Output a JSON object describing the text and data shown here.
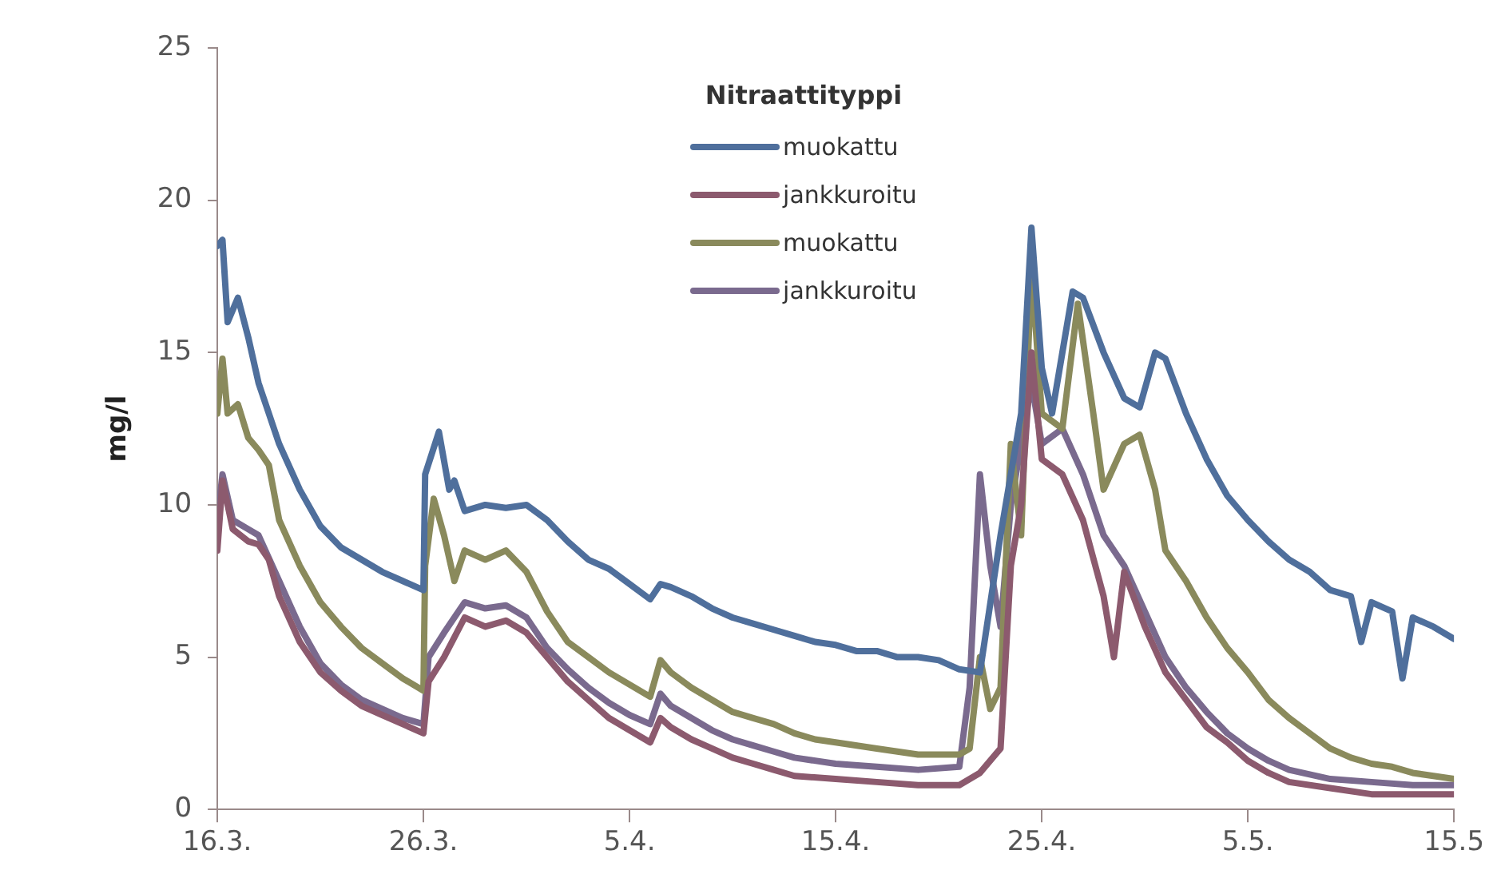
{
  "chart_data": {
    "type": "line",
    "ylabel": "mg/l",
    "legend_title": "Nitraattityppi",
    "legend": "top",
    "grid": false,
    "marker": "none",
    "line_style": "solid",
    "xlim": [
      "--03-16",
      "--05-15"
    ],
    "xticks": [
      {
        "value": "--03-16",
        "label": "16.3."
      },
      {
        "value": "--03-26",
        "label": "26.3."
      },
      {
        "value": "--04-05",
        "label": "5.4."
      },
      {
        "value": "--04-15",
        "label": "15.4."
      },
      {
        "value": "--04-25",
        "label": "25.4."
      },
      {
        "value": "--05-05",
        "label": "5.5."
      },
      {
        "value": "--05-15",
        "label": "15.5"
      }
    ],
    "ylim": [
      0,
      25
    ],
    "yticks": [
      0,
      5,
      10,
      15,
      20,
      25
    ],
    "series": [
      {
        "name": "muokattu",
        "color": "#4f6f9c",
        "x": [
          "--03-16",
          "--03-16T06:00",
          "--03-16T12:00",
          "--03-17",
          "--03-17T12:00",
          "--03-18",
          "--03-19",
          "--03-20",
          "--03-21",
          "--03-22",
          "--03-23",
          "--03-24",
          "--03-25",
          "--03-26",
          "--03-26T02:00",
          "--03-26T18:00",
          "--03-27T06:00",
          "--03-27T12:00",
          "--03-28",
          "--03-29",
          "--03-30",
          "--03-31",
          "--04-01",
          "--04-02",
          "--04-03",
          "--04-04",
          "--04-05",
          "--04-06",
          "--04-06T12:00",
          "--04-07",
          "--04-08",
          "--04-09",
          "--04-10",
          "--04-11",
          "--04-12",
          "--04-13",
          "--04-14",
          "--04-15",
          "--04-16",
          "--04-17",
          "--04-18",
          "--04-19",
          "--04-20",
          "--04-21",
          "--04-22",
          "--04-23",
          "--04-24",
          "--04-24T12:00",
          "--04-25",
          "--04-25T12:00",
          "--04-26",
          "--04-26T12:00",
          "--04-27",
          "--04-28",
          "--04-29",
          "--04-29T18:00",
          "--04-30T12:00",
          "--05-01",
          "--05-02",
          "--05-03",
          "--05-04",
          "--05-05",
          "--05-06",
          "--05-07",
          "--05-08",
          "--05-09",
          "--05-10",
          "--05-10T12:00",
          "--05-11",
          "--05-12",
          "--05-12T12:00",
          "--05-13",
          "--05-14",
          "--05-15"
        ],
        "values": [
          18.5,
          18.7,
          16,
          16.8,
          15.5,
          14,
          12,
          10.5,
          9.3,
          8.6,
          8.2,
          7.8,
          7.5,
          7.2,
          11,
          12.4,
          10.5,
          10.8,
          9.8,
          10,
          9.9,
          10,
          9.5,
          8.8,
          8.2,
          7.9,
          7.4,
          6.9,
          7.4,
          7.3,
          7,
          6.6,
          6.3,
          6.1,
          5.9,
          5.7,
          5.5,
          5.4,
          5.2,
          5.2,
          5,
          5,
          4.9,
          4.6,
          4.5,
          9,
          13,
          19.1,
          14.5,
          13,
          15,
          17,
          16.8,
          15,
          13.5,
          13.2,
          15,
          14.8,
          13,
          11.5,
          10.3,
          9.5,
          8.8,
          8.2,
          7.8,
          7.2,
          7,
          5.5,
          6.8,
          6.5,
          4.3,
          6.3,
          6,
          5.6
        ]
      },
      {
        "name": "jankkuroitu",
        "color": "#8c5a6e",
        "x": [
          "--03-16",
          "--03-16T06:00",
          "--03-16T18:00",
          "--03-17T12:00",
          "--03-18",
          "--03-18T12:00",
          "--03-19",
          "--03-20",
          "--03-21",
          "--03-22",
          "--03-23",
          "--03-24",
          "--03-25",
          "--03-26",
          "--03-26T06:00",
          "--03-27",
          "--03-28",
          "--03-29",
          "--03-30",
          "--03-31",
          "--04-01",
          "--04-02",
          "--04-03",
          "--04-04",
          "--04-05",
          "--04-06",
          "--04-06T12:00",
          "--04-07",
          "--04-08",
          "--04-09",
          "--04-10",
          "--04-11",
          "--04-12",
          "--04-13",
          "--04-15",
          "--04-17",
          "--04-19",
          "--04-21",
          "--04-22",
          "--04-23",
          "--04-23T12:00",
          "--04-24",
          "--04-24T12:00",
          "--04-25",
          "--04-26",
          "--04-27",
          "--04-28",
          "--04-28T12:00",
          "--04-29",
          "--04-30",
          "--05-01",
          "--05-02",
          "--05-03",
          "--05-04",
          "--05-05",
          "--05-06",
          "--05-07",
          "--05-09",
          "--05-11",
          "--05-13",
          "--05-15"
        ],
        "values": [
          8.5,
          10.8,
          9.2,
          8.8,
          8.7,
          8.2,
          7,
          5.5,
          4.5,
          3.9,
          3.4,
          3.1,
          2.8,
          2.5,
          4.2,
          5,
          6.3,
          6,
          6.2,
          5.8,
          5,
          4.2,
          3.6,
          3,
          2.6,
          2.2,
          3,
          2.7,
          2.3,
          2,
          1.7,
          1.5,
          1.3,
          1.1,
          1,
          0.9,
          0.8,
          0.8,
          1.2,
          2,
          8,
          10,
          15,
          11.5,
          11,
          9.5,
          7,
          5,
          7.8,
          6,
          4.5,
          3.6,
          2.7,
          2.2,
          1.6,
          1.2,
          0.9,
          0.7,
          0.5,
          0.5,
          0.5
        ]
      },
      {
        "name": "muokattu",
        "color": "#8a8a5c",
        "x": [
          "--03-16",
          "--03-16T06:00",
          "--03-16T12:00",
          "--03-17",
          "--03-17T12:00",
          "--03-18",
          "--03-18T12:00",
          "--03-19",
          "--03-20",
          "--03-21",
          "--03-22",
          "--03-23",
          "--03-24",
          "--03-25",
          "--03-26",
          "--03-26T02:00",
          "--03-26T12:00",
          "--03-27",
          "--03-27T12:00",
          "--03-28",
          "--03-29",
          "--03-30",
          "--03-31",
          "--04-01",
          "--04-02",
          "--04-03",
          "--04-04",
          "--04-05",
          "--04-06",
          "--04-06T12:00",
          "--04-07",
          "--04-08",
          "--04-09",
          "--04-10",
          "--04-11",
          "--04-12",
          "--04-13",
          "--04-14",
          "--04-15",
          "--04-17",
          "--04-19",
          "--04-21",
          "--04-21T12:00",
          "--04-22",
          "--04-22T12:00",
          "--04-23",
          "--04-23T12:00",
          "--04-24",
          "--04-24T12:00",
          "--04-25",
          "--04-26",
          "--04-26T18:00",
          "--04-27T12:00",
          "--04-28",
          "--04-29",
          "--04-29T18:00",
          "--04-30T12:00",
          "--05-01",
          "--05-02",
          "--05-03",
          "--05-04",
          "--05-05",
          "--05-06",
          "--05-07",
          "--05-08",
          "--05-09",
          "--05-10",
          "--05-11",
          "--05-12",
          "--05-13",
          "--05-14",
          "--05-15"
        ],
        "values": [
          13,
          14.8,
          13,
          13.3,
          12.2,
          11.8,
          11.3,
          9.5,
          8,
          6.8,
          6,
          5.3,
          4.8,
          4.3,
          3.9,
          8,
          10.2,
          9,
          7.5,
          8.5,
          8.2,
          8.5,
          7.8,
          6.5,
          5.5,
          5,
          4.5,
          4.1,
          3.7,
          4.9,
          4.5,
          4,
          3.6,
          3.2,
          3,
          2.8,
          2.5,
          2.3,
          2.2,
          2,
          1.8,
          1.8,
          2,
          5,
          3.3,
          4,
          12,
          9,
          17.8,
          13,
          12.5,
          16.6,
          13,
          10.5,
          12,
          12.3,
          10.5,
          8.5,
          7.5,
          6.3,
          5.3,
          4.5,
          3.6,
          3,
          2.5,
          2,
          1.7,
          1.5,
          1.4,
          1.2,
          1.1,
          1
        ]
      },
      {
        "name": "jankkuroitu",
        "color": "#7a6a8e",
        "x": [
          "--03-16",
          "--03-16T06:00",
          "--03-16T18:00",
          "--03-17T12:00",
          "--03-18",
          "--03-19",
          "--03-20",
          "--03-21",
          "--03-22",
          "--03-23",
          "--03-24",
          "--03-25",
          "--03-26",
          "--03-26T06:00",
          "--03-27",
          "--03-28",
          "--03-29",
          "--03-30",
          "--03-31",
          "--04-01",
          "--04-02",
          "--04-03",
          "--04-04",
          "--04-05",
          "--04-06",
          "--04-06T12:00",
          "--04-07",
          "--04-08",
          "--04-09",
          "--04-10",
          "--04-11",
          "--04-12",
          "--04-13",
          "--04-15",
          "--04-17",
          "--04-19",
          "--04-21",
          "--04-21T12:00",
          "--04-22",
          "--04-22T12:00",
          "--04-23",
          "--04-23T12:00",
          "--04-24",
          "--04-24T12:00",
          "--04-25",
          "--04-26",
          "--04-27",
          "--04-28",
          "--04-29",
          "--04-30",
          "--05-01",
          "--05-02",
          "--05-03",
          "--05-04",
          "--05-05",
          "--05-06",
          "--05-07",
          "--05-09",
          "--05-11",
          "--05-13",
          "--05-15"
        ],
        "values": [
          9.5,
          11,
          9.5,
          9.2,
          9,
          7.5,
          6,
          4.8,
          4.1,
          3.6,
          3.3,
          3,
          2.8,
          5,
          5.8,
          6.8,
          6.6,
          6.7,
          6.3,
          5.3,
          4.6,
          4,
          3.5,
          3.1,
          2.8,
          3.8,
          3.4,
          3,
          2.6,
          2.3,
          2.1,
          1.9,
          1.7,
          1.5,
          1.4,
          1.3,
          1.4,
          4,
          11,
          8,
          6,
          10,
          12,
          14,
          12,
          12.5,
          11,
          9,
          8,
          6.5,
          5,
          4,
          3.2,
          2.5,
          2,
          1.6,
          1.3,
          1,
          0.9,
          0.8,
          0.8
        ]
      }
    ]
  }
}
